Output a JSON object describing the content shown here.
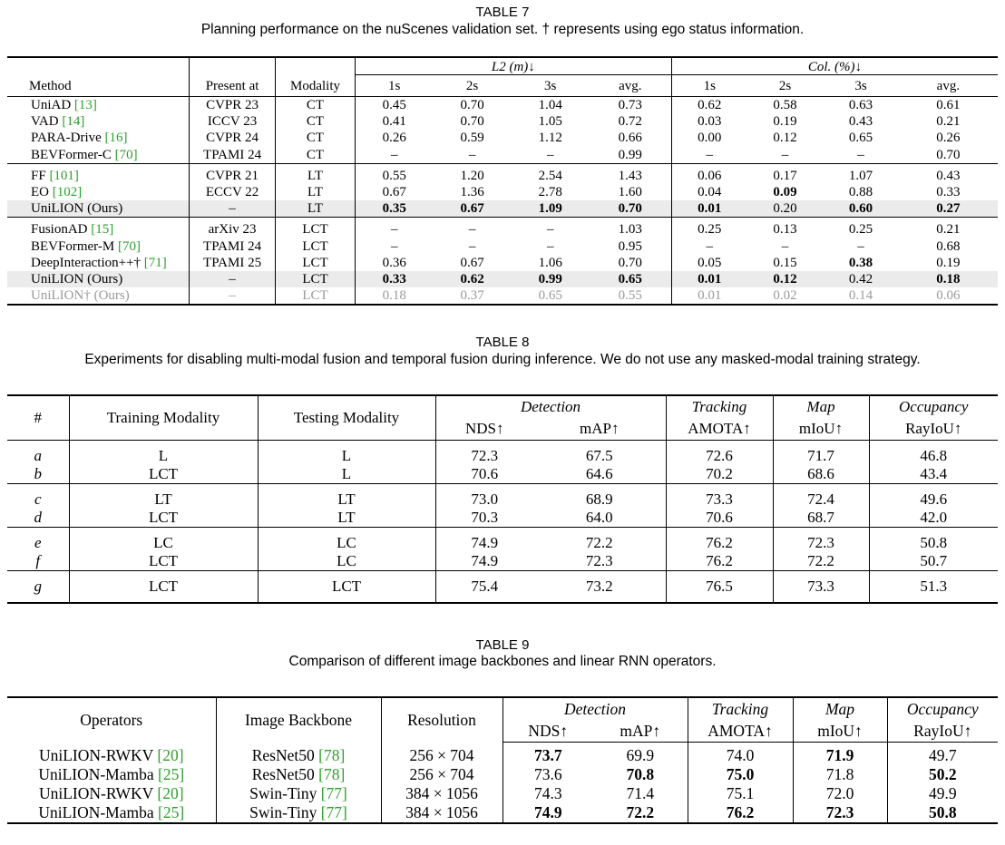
{
  "t7": {
    "title": "TABLE 7",
    "caption": "Planning performance on the nuScenes validation set. † represents using ego status information.",
    "group_l2": "L2 (m)↓",
    "group_col": "Col. (%)↓",
    "head": [
      "Method",
      "Present at",
      "Modality",
      "1s",
      "2s",
      "3s",
      "avg.",
      "1s",
      "2s",
      "3s",
      "avg."
    ],
    "rows": [
      [
        "UniAD ",
        "[13]",
        "CVPR 23",
        "CT",
        "0.45",
        "0.70",
        "1.04",
        "0.73",
        "0.62",
        "0.58",
        "0.63",
        "0.61"
      ],
      [
        "VAD ",
        "[14]",
        "ICCV 23",
        "CT",
        "0.41",
        "0.70",
        "1.05",
        "0.72",
        "0.03",
        "0.19",
        "0.43",
        "0.21"
      ],
      [
        "PARA-Drive ",
        "[16]",
        "CVPR 24",
        "CT",
        "0.26",
        "0.59",
        "1.12",
        "0.66",
        "0.00",
        "0.12",
        "0.65",
        "0.26"
      ],
      [
        "BEVFormer-C ",
        "[70]",
        "TPAMI 24",
        "CT",
        "–",
        "–",
        "–",
        "0.99",
        "–",
        "–",
        "–",
        "0.70"
      ],
      [
        "FF ",
        "[101]",
        "CVPR 21",
        "LT",
        "0.55",
        "1.20",
        "2.54",
        "1.43",
        "0.06",
        "0.17",
        "1.07",
        "0.43"
      ],
      [
        "EO ",
        "[102]",
        "ECCV 22",
        "LT",
        "0.67",
        "1.36",
        "2.78",
        "1.60",
        "0.04",
        "0.09",
        "0.88",
        "0.33"
      ],
      [
        "UniLION (Ours)",
        "",
        "–",
        "LT",
        "0.35",
        "0.67",
        "1.09",
        "0.70",
        "0.01",
        "0.20",
        "0.60",
        "0.27"
      ],
      [
        "FusionAD ",
        "[15]",
        "arXiv 23",
        "LCT",
        "–",
        "–",
        "–",
        "1.03",
        "0.25",
        "0.13",
        "0.25",
        "0.21"
      ],
      [
        "BEVFormer-M ",
        "[70]",
        "TPAMI 24",
        "LCT",
        "–",
        "–",
        "–",
        "0.95",
        "–",
        "–",
        "–",
        "0.68"
      ],
      [
        "DeepInteraction++† ",
        "[71]",
        "TPAMI 25",
        "LCT",
        "0.36",
        "0.67",
        "1.06",
        "0.70",
        "0.05",
        "0.15",
        "0.38",
        "0.19"
      ],
      [
        "UniLION (Ours)",
        "",
        "–",
        "LCT",
        "0.33",
        "0.62",
        "0.99",
        "0.65",
        "0.01",
        "0.12",
        "0.42",
        "0.18"
      ],
      [
        "UniLION† (Ours)",
        "",
        "–",
        "LCT",
        "0.18",
        "0.37",
        "0.65",
        "0.55",
        "0.01",
        "0.02",
        "0.14",
        "0.06"
      ]
    ]
  },
  "t8": {
    "title": "TABLE 8",
    "caption": "Experiments for disabling multi-modal fusion and temporal fusion during inference. We do not use any masked-modal training strategy.",
    "head": {
      "hash": "#",
      "training": "Training Modality",
      "testing": "Testing Modality",
      "detection": "Detection",
      "nds": "NDS↑",
      "map": "mAP↑",
      "tracking": "Tracking",
      "amota": "AMOTA↑",
      "mapseg": "Map",
      "miou": "mIoU↑",
      "occupancy": "Occupancy",
      "rayiou": "RayIoU↑"
    },
    "rows": [
      [
        "a",
        "L",
        "L",
        "72.3",
        "67.5",
        "72.6",
        "71.7",
        "46.8"
      ],
      [
        "b",
        "LCT",
        "L",
        "70.6",
        "64.6",
        "70.2",
        "68.6",
        "43.4"
      ],
      [
        "c",
        "LT",
        "LT",
        "73.0",
        "68.9",
        "73.3",
        "72.4",
        "49.6"
      ],
      [
        "d",
        "LCT",
        "LT",
        "70.3",
        "64.0",
        "70.6",
        "68.7",
        "42.0"
      ],
      [
        "e",
        "LC",
        "LC",
        "74.9",
        "72.2",
        "76.2",
        "72.3",
        "50.8"
      ],
      [
        "f",
        "LCT",
        "LC",
        "74.9",
        "72.3",
        "76.2",
        "72.2",
        "50.7"
      ],
      [
        "g",
        "LCT",
        "LCT",
        "75.4",
        "73.2",
        "76.5",
        "73.3",
        "51.3"
      ]
    ]
  },
  "t9": {
    "title": "TABLE 9",
    "caption": "Comparison of different image backbones and linear RNN operators.",
    "head": {
      "operators": "Operators",
      "backbone": "Image Backbone",
      "resolution": "Resolution",
      "detection": "Detection",
      "nds": "NDS↑",
      "map": "mAP↑",
      "tracking": "Tracking",
      "amota": "AMOTA↑",
      "mapseg": "Map",
      "miou": "mIoU↑",
      "occupancy": "Occupancy",
      "rayiou": "RayIoU↑"
    },
    "rows": [
      [
        "UniLION-RWKV ",
        "[20]",
        "ResNet50 ",
        "[78]",
        "256 × 704",
        "73.7",
        "69.9",
        "74.0",
        "71.9",
        "49.7"
      ],
      [
        "UniLION-Mamba ",
        "[25]",
        "ResNet50 ",
        "[78]",
        "256 × 704",
        "73.6",
        "70.8",
        "75.0",
        "71.8",
        "50.2"
      ],
      [
        "UniLION-RWKV ",
        "[20]",
        "Swin-Tiny ",
        "[77]",
        "384 × 1056",
        "74.3",
        "71.4",
        "75.1",
        "72.0",
        "49.9"
      ],
      [
        "UniLION-Mamba ",
        "[25]",
        "Swin-Tiny ",
        "[77]",
        "384 × 1056",
        "74.9",
        "72.2",
        "76.2",
        "72.3",
        "50.8"
      ]
    ]
  }
}
